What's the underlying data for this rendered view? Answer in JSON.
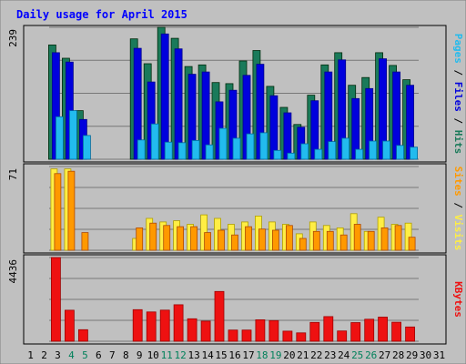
{
  "colors": {
    "page_bg": "#c0c0c0",
    "title": "#0000ff",
    "hits": "#1a7a5a",
    "files": "#0000dd",
    "pages": "#22bbee",
    "visits": "#ffee44",
    "sites": "#ff9900",
    "kbytes": "#ee1111",
    "weekend_label": "#00805a"
  },
  "chart_data": {
    "type": "bar",
    "title": "Daily usage for April 2015",
    "days": [
      "1",
      "2",
      "3",
      "4",
      "5",
      "6",
      "7",
      "8",
      "9",
      "10",
      "11",
      "12",
      "13",
      "14",
      "15",
      "16",
      "17",
      "18",
      "19",
      "20",
      "21",
      "22",
      "23",
      "24",
      "25",
      "26",
      "27",
      "28",
      "29",
      "30",
      "31"
    ],
    "weekend_days": [
      "4",
      "5",
      "11",
      "12",
      "18",
      "19",
      "25",
      "26"
    ],
    "panels": [
      {
        "name": "hits-files-pages",
        "axis_label": "239",
        "ymax": 239,
        "legend": [
          "Pages",
          "Files",
          "Hits"
        ],
        "series": [
          {
            "name": "Hits",
            "values": [
              0,
              0,
              207,
              183,
              88,
              0,
              0,
              0,
              218,
              173,
              239,
              219,
              168,
              171,
              139,
              137,
              178,
              197,
              132,
              94,
              63,
              116,
              171,
              193,
              134,
              148,
              193,
              170,
              144,
              0,
              0
            ]
          },
          {
            "name": "Files",
            "values": [
              0,
              0,
              193,
              176,
              72,
              0,
              0,
              0,
              201,
              140,
              227,
              200,
              154,
              158,
              104,
              125,
              152,
              172,
              115,
              84,
              58,
              106,
              158,
              180,
              110,
              128,
              182,
              158,
              134,
              0,
              0
            ]
          },
          {
            "name": "Pages",
            "values": [
              0,
              0,
              77,
              88,
              43,
              0,
              0,
              0,
              35,
              64,
              31,
              30,
              34,
              26,
              56,
              38,
              46,
              48,
              16,
              11,
              28,
              18,
              32,
              38,
              18,
              33,
              33,
              25,
              22,
              0,
              0
            ]
          }
        ]
      },
      {
        "name": "visits-sites",
        "axis_label": "71",
        "ymax": 71,
        "legend": [
          "Sites",
          "Visits"
        ],
        "series": [
          {
            "name": "Visits",
            "values": [
              0,
              0,
              69,
              69,
              0,
              0,
              0,
              0,
              10,
              27,
              24,
              25,
              22,
              30,
              27,
              22,
              24,
              29,
              24,
              22,
              14,
              24,
              21,
              19,
              31,
              16,
              28,
              22,
              23,
              0,
              0
            ]
          },
          {
            "name": "Sites",
            "values": [
              0,
              0,
              65,
              67,
              15,
              0,
              0,
              0,
              19,
              23,
              21,
              20,
              20,
              15,
              17,
              13,
              20,
              18,
              17,
              21,
              10,
              16,
              16,
              13,
              22,
              16,
              19,
              21,
              11,
              0,
              0
            ]
          }
        ]
      },
      {
        "name": "kbytes",
        "axis_label": "4436",
        "ymax": 4436,
        "legend": [
          "KBytes"
        ],
        "series": [
          {
            "name": "KBytes",
            "values": [
              0,
              0,
              4436,
              1645,
              612,
              0,
              0,
              0,
              1673,
              1553,
              1647,
              1935,
              1190,
              1068,
              2637,
              594,
              591,
              1140,
              1095,
              534,
              446,
              996,
              1309,
              545,
              988,
              1166,
              1276,
              1006,
              759,
              0,
              0
            ]
          }
        ]
      }
    ]
  }
}
